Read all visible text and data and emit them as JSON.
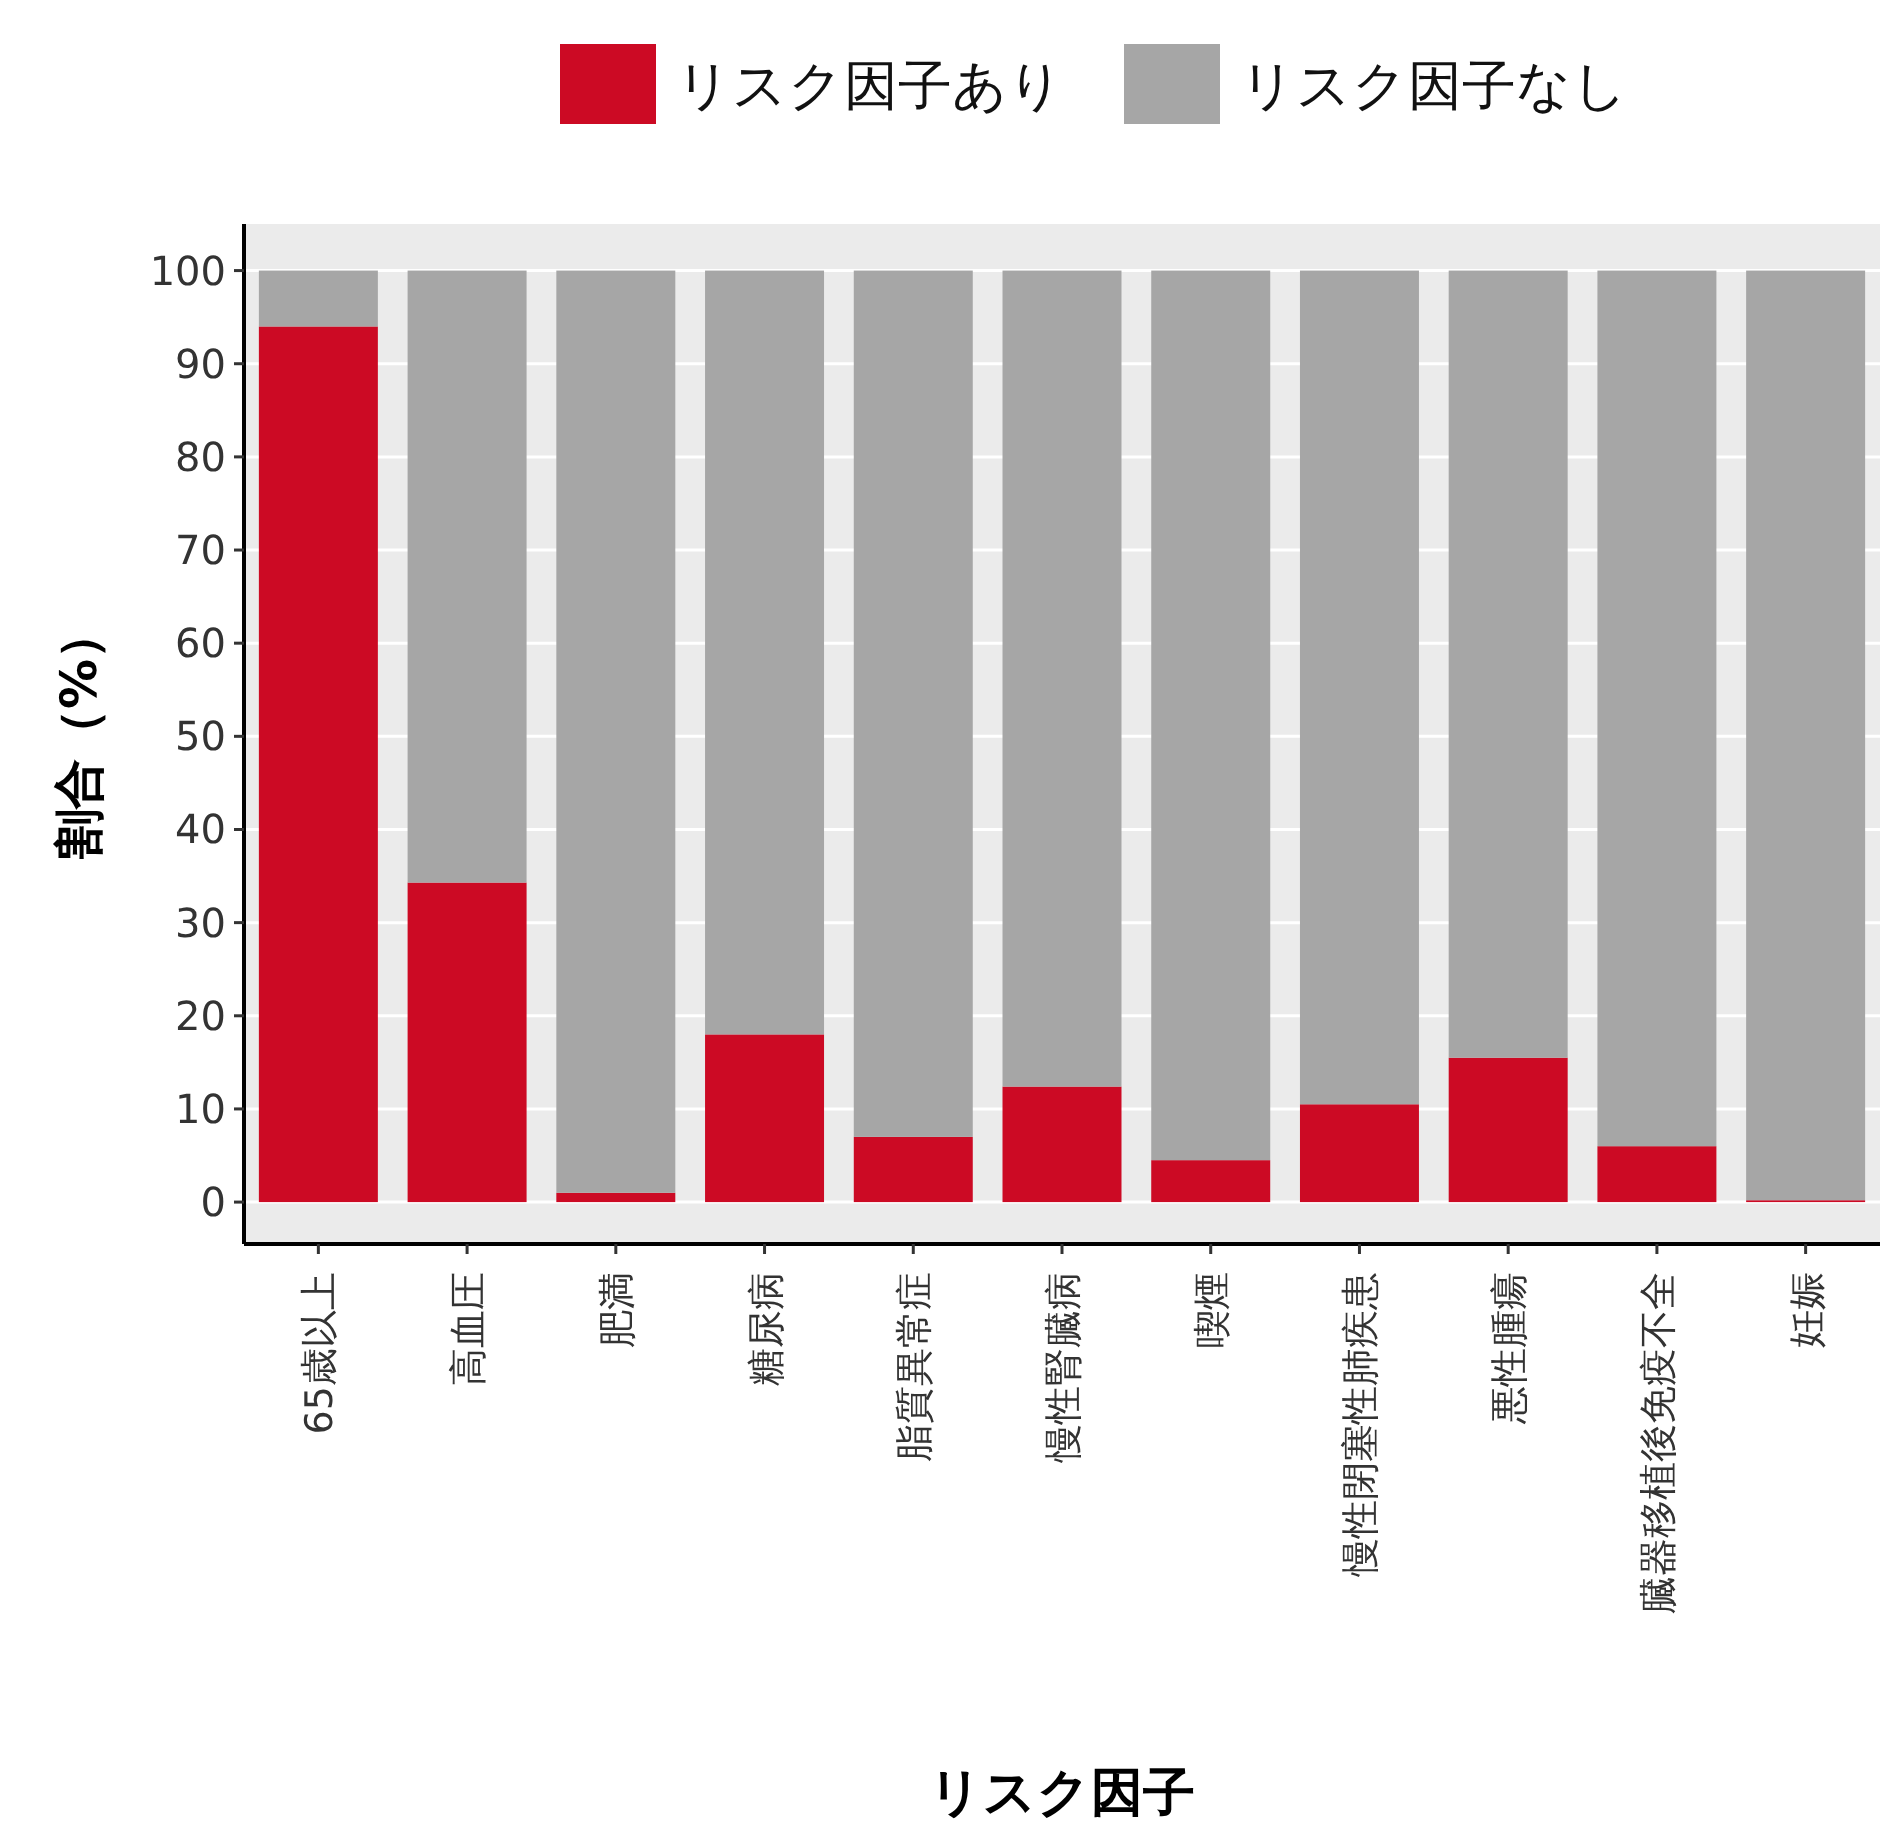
{
  "chart_data": {
    "type": "bar",
    "stacked": true,
    "xlabel": "リスク因子",
    "ylabel": "割合（%）",
    "categories": [
      "65歳以上",
      "高血圧",
      "肥満",
      "糖尿病",
      "脂質異常症",
      "慢性腎臓病",
      "喫煙",
      "慢性閉塞性肺疾患",
      "悪性腫瘍",
      "臓器移植後免疫不全",
      "妊娠"
    ],
    "series": [
      {
        "name": "リスク因子あり",
        "color": "#cc0a24",
        "values": [
          94,
          34.3,
          1,
          18,
          7,
          12.4,
          4.5,
          10.5,
          15.5,
          6,
          0.2
        ]
      },
      {
        "name": "リスク因子なし",
        "color": "#a6a6a6",
        "values": [
          6,
          65.7,
          99,
          82,
          93,
          87.6,
          95.5,
          89.5,
          84.5,
          94,
          99.8
        ]
      }
    ],
    "ylim": [
      -4.5,
      105
    ],
    "yticks": [
      0,
      10,
      20,
      30,
      40,
      50,
      60,
      70,
      80,
      90,
      100
    ],
    "grid": "y",
    "legend": "top"
  }
}
